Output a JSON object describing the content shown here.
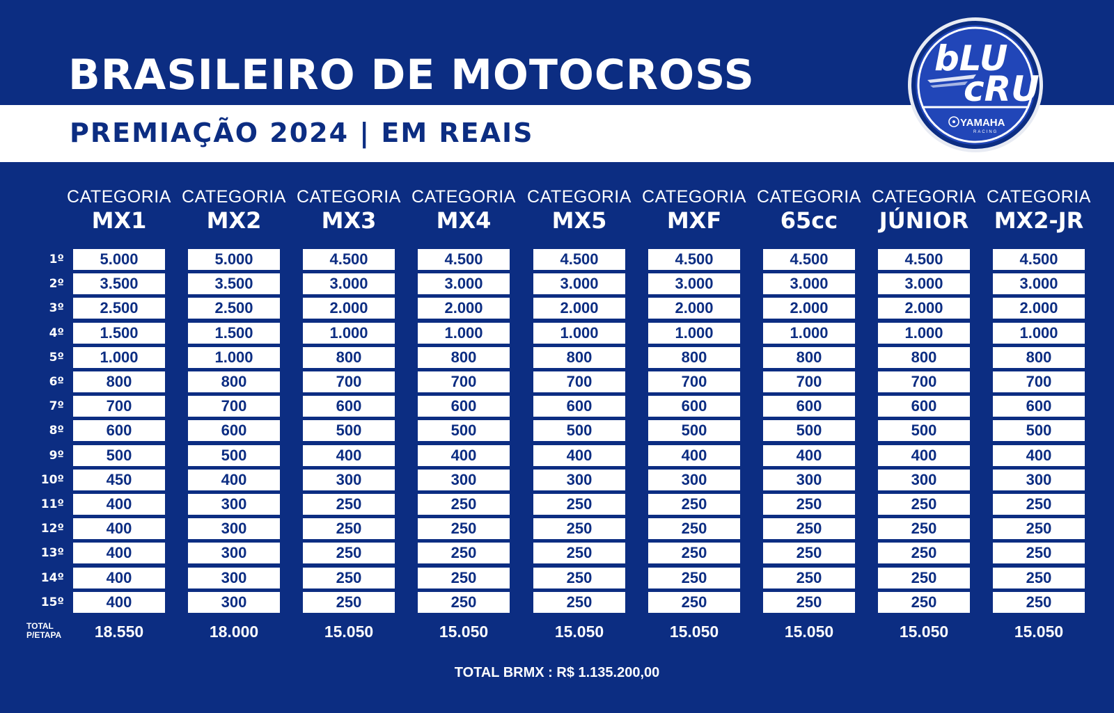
{
  "header": {
    "title": "BRASILEIRO DE MOTOCROSS",
    "subtitle": "PREMIAÇÃO 2024 | EM REAIS"
  },
  "logo": {
    "line1": "bLU",
    "line2": "cRU",
    "brand": "YAMAHA",
    "brand_sub": "RACING",
    "icon": "yamaha-emblem-icon"
  },
  "colors": {
    "background": "#0c2d82",
    "band": "#ffffff",
    "cell_text": "#0c2d82"
  },
  "table": {
    "category_word": "CATEGORIA",
    "categories": [
      "MX1",
      "MX2",
      "MX3",
      "MX4",
      "MX5",
      "MXF",
      "65cc",
      "JÚNIOR",
      "MX2-JR"
    ],
    "positions": [
      "1º",
      "2º",
      "3º",
      "4º",
      "5º",
      "6º",
      "7º",
      "8º",
      "9º",
      "10º",
      "11º",
      "12º",
      "13º",
      "14º",
      "15º"
    ],
    "prizes": [
      [
        "5.000",
        "3.500",
        "2.500",
        "1.500",
        "1.000",
        "800",
        "700",
        "600",
        "500",
        "450",
        "400",
        "400",
        "400",
        "400",
        "400"
      ],
      [
        "5.000",
        "3.500",
        "2.500",
        "1.500",
        "1.000",
        "800",
        "700",
        "600",
        "500",
        "400",
        "300",
        "300",
        "300",
        "300",
        "300"
      ],
      [
        "4.500",
        "3.000",
        "2.000",
        "1.000",
        "800",
        "700",
        "600",
        "500",
        "400",
        "300",
        "250",
        "250",
        "250",
        "250",
        "250"
      ],
      [
        "4.500",
        "3.000",
        "2.000",
        "1.000",
        "800",
        "700",
        "600",
        "500",
        "400",
        "300",
        "250",
        "250",
        "250",
        "250",
        "250"
      ],
      [
        "4.500",
        "3.000",
        "2.000",
        "1.000",
        "800",
        "700",
        "600",
        "500",
        "400",
        "300",
        "250",
        "250",
        "250",
        "250",
        "250"
      ],
      [
        "4.500",
        "3.000",
        "2.000",
        "1.000",
        "800",
        "700",
        "600",
        "500",
        "400",
        "300",
        "250",
        "250",
        "250",
        "250",
        "250"
      ],
      [
        "4.500",
        "3.000",
        "2.000",
        "1.000",
        "800",
        "700",
        "600",
        "500",
        "400",
        "300",
        "250",
        "250",
        "250",
        "250",
        "250"
      ],
      [
        "4.500",
        "3.000",
        "2.000",
        "1.000",
        "800",
        "700",
        "600",
        "500",
        "400",
        "300",
        "250",
        "250",
        "250",
        "250",
        "250"
      ],
      [
        "4.500",
        "3.000",
        "2.000",
        "1.000",
        "800",
        "700",
        "600",
        "500",
        "400",
        "300",
        "250",
        "250",
        "250",
        "250",
        "250"
      ]
    ],
    "total_label_line1": "TOTAL",
    "total_label_line2": "P/ETAPA",
    "totals": [
      "18.550",
      "18.000",
      "15.050",
      "15.050",
      "15.050",
      "15.050",
      "15.050",
      "15.050",
      "15.050"
    ]
  },
  "footer": {
    "grand_total": "TOTAL BRMX : R$ 1.135.200,00"
  }
}
